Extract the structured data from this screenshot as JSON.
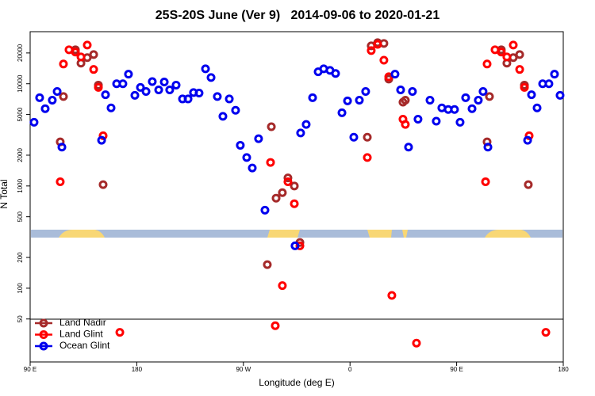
{
  "chart_data": {
    "type": "scatter",
    "title": "25S-20S June (Ver 9)   2014-09-06 to 2020-01-21",
    "xlabel": "Longitude (deg E)",
    "ylabel": "N Total",
    "xlim": [
      90,
      540
    ],
    "xticks": [
      {
        "value": 90,
        "label": "90 E"
      },
      180,
      {
        "value": 270,
        "label": "90 W"
      },
      {
        "value": 360,
        "label": "0"
      },
      {
        "value": 450,
        "label": "90 E"
      },
      {
        "value": 540,
        "label": "180"
      }
    ],
    "ylim": [
      19,
      32300
    ],
    "log_y": true,
    "yticks": [
      20000,
      10000,
      5000,
      2000,
      1000,
      500,
      200,
      100,
      50
    ],
    "legend": "lower left",
    "series": [
      {
        "name": "Land Nadir",
        "color": "#a52a2a",
        "x": [
          118.1,
          115.4,
          128.2,
          132.9,
          138.2,
          143.6,
          147.6,
          151.6,
          293.6,
          297.6,
          302.9,
          307.6,
          313,
          317.7,
          290.2,
          374.6,
          377.9,
          383.3,
          388.6,
          392.7,
          404.7,
          406.7,
          475.7,
          477.7,
          487.7,
          492.4,
          497.8,
          503.2,
          507.2,
          510.5
        ],
        "values": [
          7500,
          2700,
          21500,
          15900,
          18000,
          19300,
          9700,
          1030,
          3800,
          760,
          860,
          1200,
          1000,
          280,
          170,
          3000,
          23500,
          25200,
          24800,
          11100,
          6600,
          6900,
          2700,
          7500,
          21500,
          15900,
          18000,
          19300,
          9700,
          1030
        ]
      },
      {
        "name": "Land Glint",
        "color": "#ff0000",
        "x": [
          118.1,
          115.4,
          122.8,
          128.2,
          132.9,
          138.2,
          143.6,
          147.6,
          151.6,
          165.7,
          292.9,
          296.9,
          302.9,
          307.6,
          313,
          317.7,
          374.6,
          377.9,
          383.3,
          388.6,
          392.7,
          395.3,
          404.7,
          406.7,
          416.1,
          475.7,
          474.4,
          482.4,
          487.7,
          492.4,
          497.8,
          503.2,
          507.2,
          511.2,
          525.3
        ],
        "values": [
          15600,
          1100,
          21500,
          20400,
          18300,
          23900,
          13800,
          9200,
          3100,
          37,
          1700,
          43,
          106,
          1100,
          670,
          260,
          1900,
          21100,
          24300,
          17000,
          11700,
          85,
          4500,
          4000,
          29,
          15600,
          1100,
          21500,
          20400,
          18300,
          23900,
          13800,
          9200,
          3100,
          37
        ]
      },
      {
        "name": "Ocean Glint",
        "color": "#0000ee",
        "x": [
          93.3,
          98,
          102.7,
          108.7,
          112.8,
          116.8,
          150.3,
          153.6,
          158.3,
          163,
          168.3,
          173,
          178.4,
          183.1,
          187.8,
          193.1,
          198.5,
          203.2,
          207.8,
          213.2,
          218.6,
          223.3,
          227.9,
          232.6,
          238,
          242.7,
          248,
          252.7,
          258.1,
          263.4,
          267.4,
          272.8,
          277.5,
          282.8,
          288.2,
          313.6,
          318.3,
          323,
          328.4,
          333.1,
          337.8,
          343.1,
          347.8,
          353.2,
          357.9,
          363.2,
          367.9,
          373.2,
          398,
          402.7,
          409.4,
          412.7,
          417.4,
          427.5,
          432.8,
          437.5,
          442.9,
          448.2,
          452.9,
          457.6,
          463,
          468.3,
          472.3,
          476.4,
          509.9,
          513.2,
          517.9,
          522.6,
          527.9,
          532.6,
          537.3
        ],
        "values": [
          4200,
          7300,
          5700,
          6900,
          8400,
          2400,
          2800,
          7800,
          5800,
          10000,
          10000,
          12400,
          7700,
          9200,
          8400,
          10500,
          8700,
          10400,
          8700,
          9700,
          7100,
          7100,
          8200,
          8100,
          14000,
          11500,
          7500,
          4800,
          7100,
          5500,
          2500,
          1900,
          1500,
          2900,
          580,
          260,
          3300,
          4000,
          7300,
          13100,
          14000,
          13500,
          12600,
          5200,
          6800,
          3000,
          6900,
          8400,
          12400,
          8700,
          2400,
          8400,
          4500,
          6900,
          4300,
          5800,
          5600,
          5600,
          4200,
          7300,
          5700,
          6900,
          8400,
          2400,
          2800,
          7800,
          5800,
          10000,
          10000,
          12400,
          7700
        ]
      }
    ]
  }
}
